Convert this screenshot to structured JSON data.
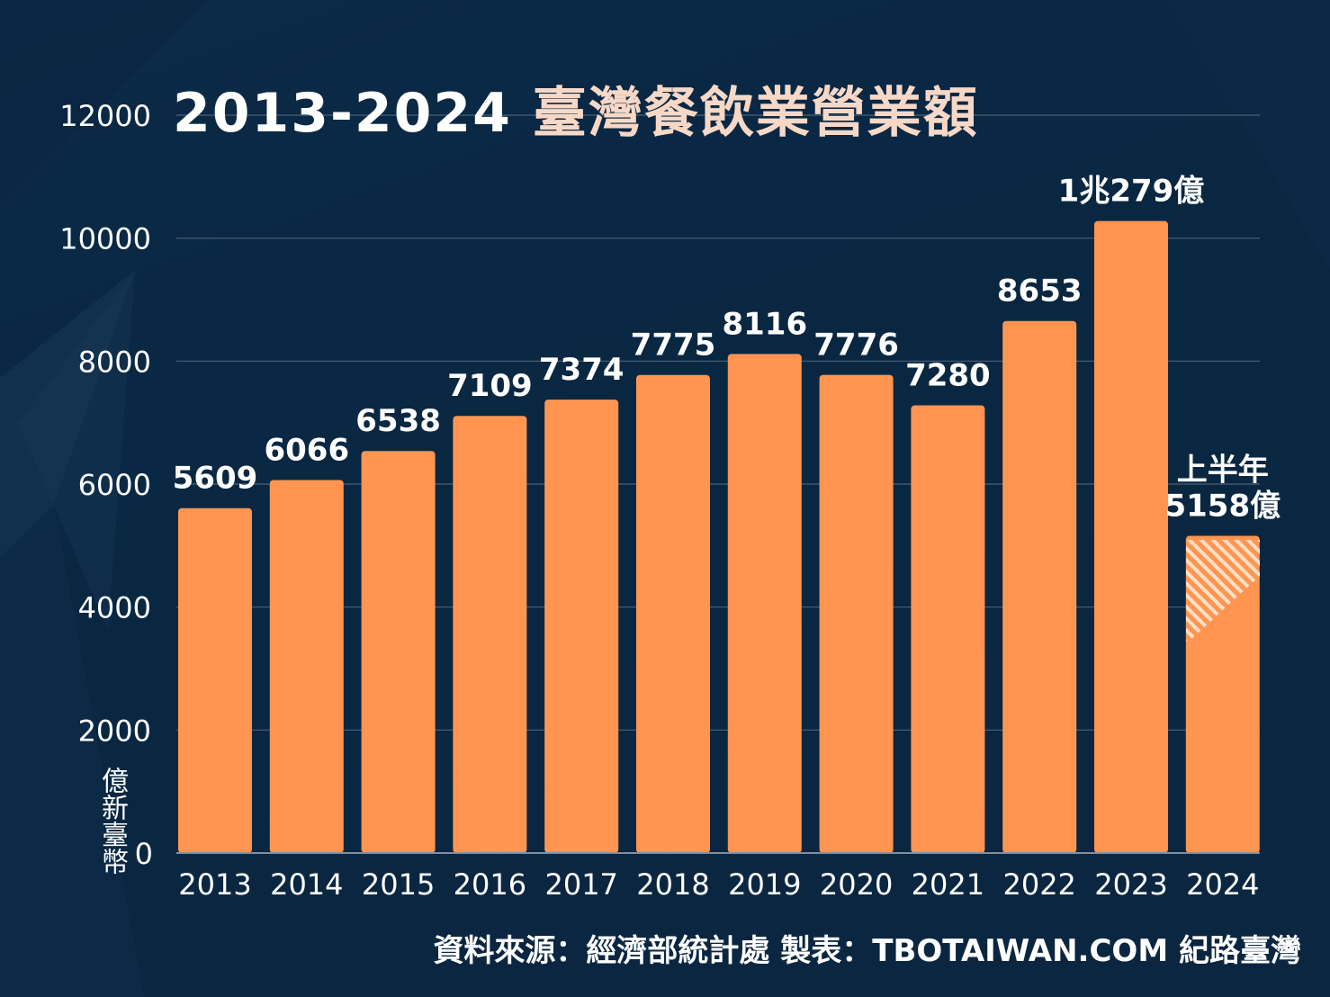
{
  "title": {
    "years": "2013-2024",
    "text": "臺灣餐飲業營業額"
  },
  "source": "資料來源：經濟部統計處  製表：TBOTAIWAN.COM 紀路臺灣",
  "colors": {
    "background": "#0b2a46",
    "bar": "#ff9550",
    "title_years": "#ffffff",
    "title_text": "#f7d8c6",
    "text": "#ffffff",
    "grid": "#4a6079"
  },
  "chart_data": {
    "type": "bar",
    "categories": [
      "2013",
      "2014",
      "2015",
      "2016",
      "2017",
      "2018",
      "2019",
      "2020",
      "2021",
      "2022",
      "2023",
      "2024"
    ],
    "values": [
      5609,
      6066,
      6538,
      7109,
      7374,
      7775,
      8116,
      7776,
      7280,
      8653,
      10279,
      5158
    ],
    "data_labels": [
      [
        "5609"
      ],
      [
        "6066"
      ],
      [
        "6538"
      ],
      [
        "7109"
      ],
      [
        "7374"
      ],
      [
        "7775"
      ],
      [
        "8116"
      ],
      [
        "7776"
      ],
      [
        "7280"
      ],
      [
        "8653"
      ],
      [
        "1兆279億"
      ],
      [
        "上半年",
        "5158億"
      ]
    ],
    "partial_year_index": 11,
    "ylabel": "億新臺幣",
    "ylim": [
      0,
      12000
    ],
    "yticks": [
      0,
      2000,
      4000,
      6000,
      8000,
      10000,
      12000
    ],
    "grid": true,
    "legend": false
  }
}
